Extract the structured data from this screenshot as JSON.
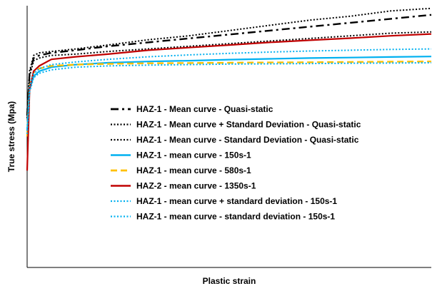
{
  "chart_data": {
    "type": "line",
    "title": "",
    "xlabel": "Plastic strain",
    "ylabel": "True stress (Mpa)",
    "grid": false,
    "legend_position": "center-left inside plot",
    "x_ticks_visible": false,
    "y_ticks_visible": false,
    "xlim": [
      0,
      1
    ],
    "ylim": [
      0,
      1
    ],
    "series": [
      {
        "name": "HAZ-1 - Mean curve - Quasi-static",
        "color": "#000000",
        "style": "dashdot",
        "x": [
          0.0,
          0.006,
          0.016,
          0.03,
          0.06,
          0.12,
          0.2,
          0.3,
          0.4,
          0.5,
          0.6,
          0.7,
          0.8,
          0.9,
          1.0
        ],
        "y": [
          0.58,
          0.74,
          0.8,
          0.81,
          0.82,
          0.83,
          0.845,
          0.86,
          0.875,
          0.89,
          0.905,
          0.92,
          0.935,
          0.95,
          0.965
        ]
      },
      {
        "name": "HAZ-1 - Mean curve + Standard Deviation - Quasi-static",
        "color": "#000000",
        "style": "dotted",
        "x": [
          0.0,
          0.006,
          0.016,
          0.03,
          0.06,
          0.12,
          0.2,
          0.3,
          0.4,
          0.5,
          0.6,
          0.7,
          0.8,
          0.9,
          1.0
        ],
        "y": [
          0.59,
          0.75,
          0.81,
          0.82,
          0.825,
          0.835,
          0.85,
          0.87,
          0.885,
          0.905,
          0.925,
          0.945,
          0.96,
          0.98,
          0.99
        ]
      },
      {
        "name": "HAZ-1 - Mean curve - Standard Deviation - Quasi-static",
        "color": "#000000",
        "style": "dotted",
        "x": [
          0.0,
          0.006,
          0.016,
          0.03,
          0.06,
          0.12,
          0.2,
          0.3,
          0.4,
          0.5,
          0.6,
          0.7,
          0.8,
          0.9,
          1.0
        ],
        "y": [
          0.57,
          0.73,
          0.79,
          0.8,
          0.81,
          0.815,
          0.825,
          0.835,
          0.845,
          0.855,
          0.865,
          0.875,
          0.885,
          0.895,
          0.9
        ]
      },
      {
        "name": "HAZ-1 - mean curve - 150s-1",
        "color": "#00B0F0",
        "style": "solid",
        "x": [
          0.0,
          0.006,
          0.016,
          0.03,
          0.06,
          0.12,
          0.2,
          0.3,
          0.4,
          0.5,
          0.6,
          0.7,
          0.8,
          0.9,
          1.0
        ],
        "y": [
          0.52,
          0.68,
          0.73,
          0.75,
          0.765,
          0.775,
          0.782,
          0.787,
          0.79,
          0.794,
          0.797,
          0.8,
          0.802,
          0.804,
          0.806
        ]
      },
      {
        "name": "HAZ-1 - mean curve - 580s-1",
        "color": "#FFC000",
        "style": "dashed",
        "x": [
          0.0,
          0.006,
          0.016,
          0.03,
          0.06,
          0.12,
          0.2,
          0.3,
          0.4,
          0.5,
          0.6,
          0.7,
          0.8,
          0.9,
          1.0
        ],
        "y": [
          0.5,
          0.69,
          0.745,
          0.76,
          0.77,
          0.775,
          0.778,
          0.78,
          0.781,
          0.782,
          0.783,
          0.784,
          0.785,
          0.786,
          0.787
        ]
      },
      {
        "name": "HAZ-2 - mean curve - 1350s-1",
        "color": "#C00000",
        "style": "solid",
        "x": [
          0.0,
          0.006,
          0.016,
          0.03,
          0.06,
          0.12,
          0.2,
          0.3,
          0.4,
          0.5,
          0.6,
          0.7,
          0.8,
          0.9,
          1.0
        ],
        "y": [
          0.37,
          0.68,
          0.75,
          0.77,
          0.795,
          0.805,
          0.815,
          0.83,
          0.84,
          0.85,
          0.86,
          0.868,
          0.876,
          0.885,
          0.892
        ]
      },
      {
        "name": "HAZ-1 - mean curve + standard deviation - 150s-1",
        "color": "#00B0F0",
        "style": "dotted",
        "x": [
          0.0,
          0.006,
          0.016,
          0.03,
          0.06,
          0.12,
          0.2,
          0.3,
          0.4,
          0.5,
          0.6,
          0.7,
          0.8,
          0.9,
          1.0
        ],
        "y": [
          0.53,
          0.69,
          0.74,
          0.76,
          0.775,
          0.785,
          0.795,
          0.805,
          0.812,
          0.818,
          0.823,
          0.827,
          0.83,
          0.833,
          0.835
        ]
      },
      {
        "name": "HAZ-1 - mean curve - standard deviation - 150s-1",
        "color": "#00B0F0",
        "style": "dotted",
        "x": [
          0.0,
          0.006,
          0.016,
          0.03,
          0.06,
          0.12,
          0.2,
          0.3,
          0.4,
          0.5,
          0.6,
          0.7,
          0.8,
          0.9,
          1.0
        ],
        "y": [
          0.51,
          0.67,
          0.725,
          0.742,
          0.755,
          0.765,
          0.77,
          0.773,
          0.775,
          0.777,
          0.778,
          0.779,
          0.78,
          0.781,
          0.782
        ]
      }
    ]
  }
}
